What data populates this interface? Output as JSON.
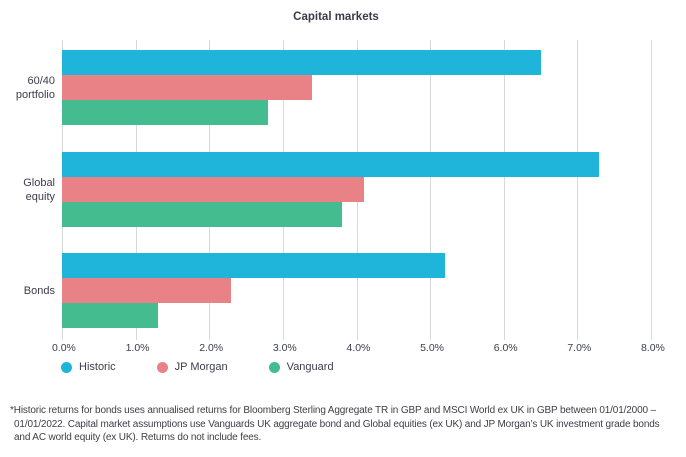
{
  "title": "Capital markets",
  "text_color": "#3c3c4c",
  "footnote": "*Historic returns for bonds uses annualised returns for Bloomberg Sterling Aggregate TR in GBP and MSCI World ex UK in GBP between 01/01/2000 – 01/01/2022. Capital market assumptions use Vanguards UK aggregate bond and Global equities (ex UK) and JP Morgan’s UK investment grade bonds and AC world equity (ex UK). Returns do not include fees.",
  "chart_data": {
    "type": "bar",
    "orientation": "horizontal",
    "title": "Capital markets",
    "categories": [
      "60/40\nportfolio",
      "Global\nequity",
      "Bonds"
    ],
    "series": [
      {
        "name": "Historic",
        "color": "#1fb4da",
        "values": [
          6.5,
          7.3,
          5.2
        ]
      },
      {
        "name": "JP Morgan",
        "color": "#e98286",
        "values": [
          3.4,
          4.1,
          2.3
        ]
      },
      {
        "name": "Vanguard",
        "color": "#44bc90",
        "values": [
          2.8,
          3.8,
          1.3
        ]
      }
    ],
    "xlim": [
      0,
      8
    ],
    "x_tick_labels": [
      "0.0%",
      "1.0%",
      "2.0%",
      "3.0%",
      "4.0%",
      "5.0%",
      "6.0%",
      "7.0%",
      "8.0%"
    ],
    "grid": true,
    "gridline_color": "#d9d9d9",
    "legend_position": "bottom"
  }
}
